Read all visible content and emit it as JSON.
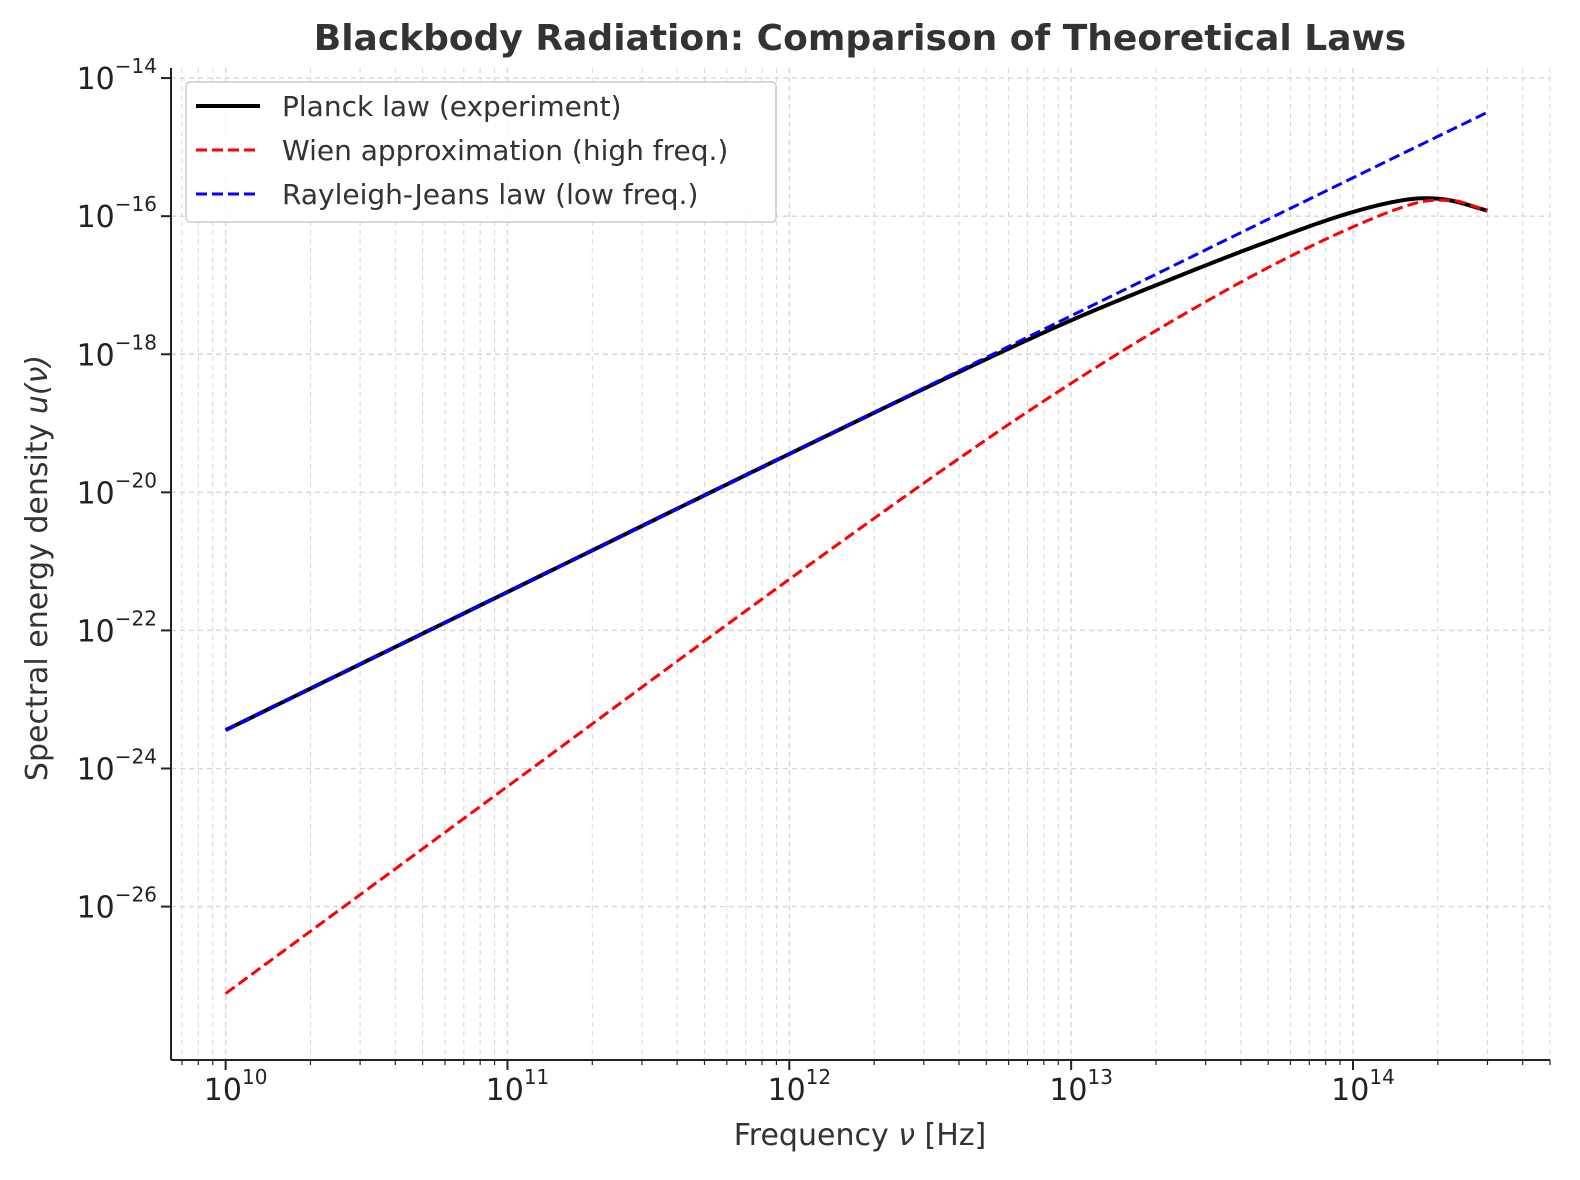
{
  "chart_data": {
    "type": "line",
    "title": "Blackbody Radiation: Comparison of Theoretical Laws",
    "xlabel_prefix": "Frequency ",
    "xlabel_symbol": "ν",
    "xlabel_suffix": " [Hz]",
    "ylabel_prefix": "Spectral energy density ",
    "ylabel_symbol": "u(ν)",
    "xscale": "log",
    "yscale": "log",
    "xlim": [
      6400000000.0,
      500000000000000.0
    ],
    "ylim": [
      6e-29,
      1.4e-14
    ],
    "grid": true,
    "legend_position": "top-left",
    "x_ticks": [
      {
        "value": 10000000000.0,
        "base": "10",
        "exp": "10"
      },
      {
        "value": 100000000000.0,
        "base": "10",
        "exp": "11"
      },
      {
        "value": 1000000000000.0,
        "base": "10",
        "exp": "12"
      },
      {
        "value": 10000000000000.0,
        "base": "10",
        "exp": "13"
      },
      {
        "value": 100000000000000.0,
        "base": "10",
        "exp": "14"
      }
    ],
    "y_ticks": [
      {
        "value": 1e-26,
        "base": "10",
        "exp": "−26"
      },
      {
        "value": 1e-24,
        "base": "10",
        "exp": "−24"
      },
      {
        "value": 1e-22,
        "base": "10",
        "exp": "−22"
      },
      {
        "value": 1e-20,
        "base": "10",
        "exp": "−20"
      },
      {
        "value": 1e-18,
        "base": "10",
        "exp": "−18"
      },
      {
        "value": 1e-16,
        "base": "10",
        "exp": "−16"
      },
      {
        "value": 1e-14,
        "base": "10",
        "exp": "−14"
      }
    ],
    "series": [
      {
        "name": "Planck law (experiment)",
        "color": "#000000",
        "style": "solid",
        "x": [
          10000000000.0,
          100000000000.0,
          1000000000000.0,
          5000000000000.0,
          10000000000000.0,
          20000000000000.0,
          50000000000000.0,
          100000000000000.0,
          150000000000000.0,
          180000000000000.0,
          220000000000000.0,
          300000000000000.0
        ],
        "values": [
          3.6e-24,
          3.6e-22,
          3.6e-20,
          8.5e-19,
          3.1e-18,
          1e-17,
          4.3e-17,
          1.15e-16,
          1.7e-16,
          1.82e-16,
          1.7e-16,
          1.2e-16
        ]
      },
      {
        "name": "Wien approximation (high freq.)",
        "color": "#ff0000",
        "style": "dashed",
        "x": [
          10000000000.0,
          100000000000.0,
          1000000000000.0,
          5000000000000.0,
          10000000000000.0,
          20000000000000.0,
          50000000000000.0,
          100000000000000.0,
          150000000000000.0,
          180000000000000.0,
          220000000000000.0,
          300000000000000.0
        ],
        "values": [
          5.5e-28,
          5.5e-25,
          5.5e-22,
          5.8e-20,
          3.8e-19,
          2.2e-18,
          1.8e-17,
          7e-17,
          1.35e-16,
          1.65e-16,
          1.7e-16,
          1.2e-16
        ]
      },
      {
        "name": "Rayleigh-Jeans law (low freq.)",
        "color": "#0000ff",
        "style": "dashed",
        "x": [
          10000000000.0,
          100000000000.0,
          1000000000000.0,
          10000000000000.0,
          100000000000000.0,
          300000000000000.0
        ],
        "values": [
          3.6e-24,
          3.6e-22,
          3.6e-20,
          3.6e-18,
          3.6e-16,
          3.2e-15
        ]
      }
    ]
  }
}
